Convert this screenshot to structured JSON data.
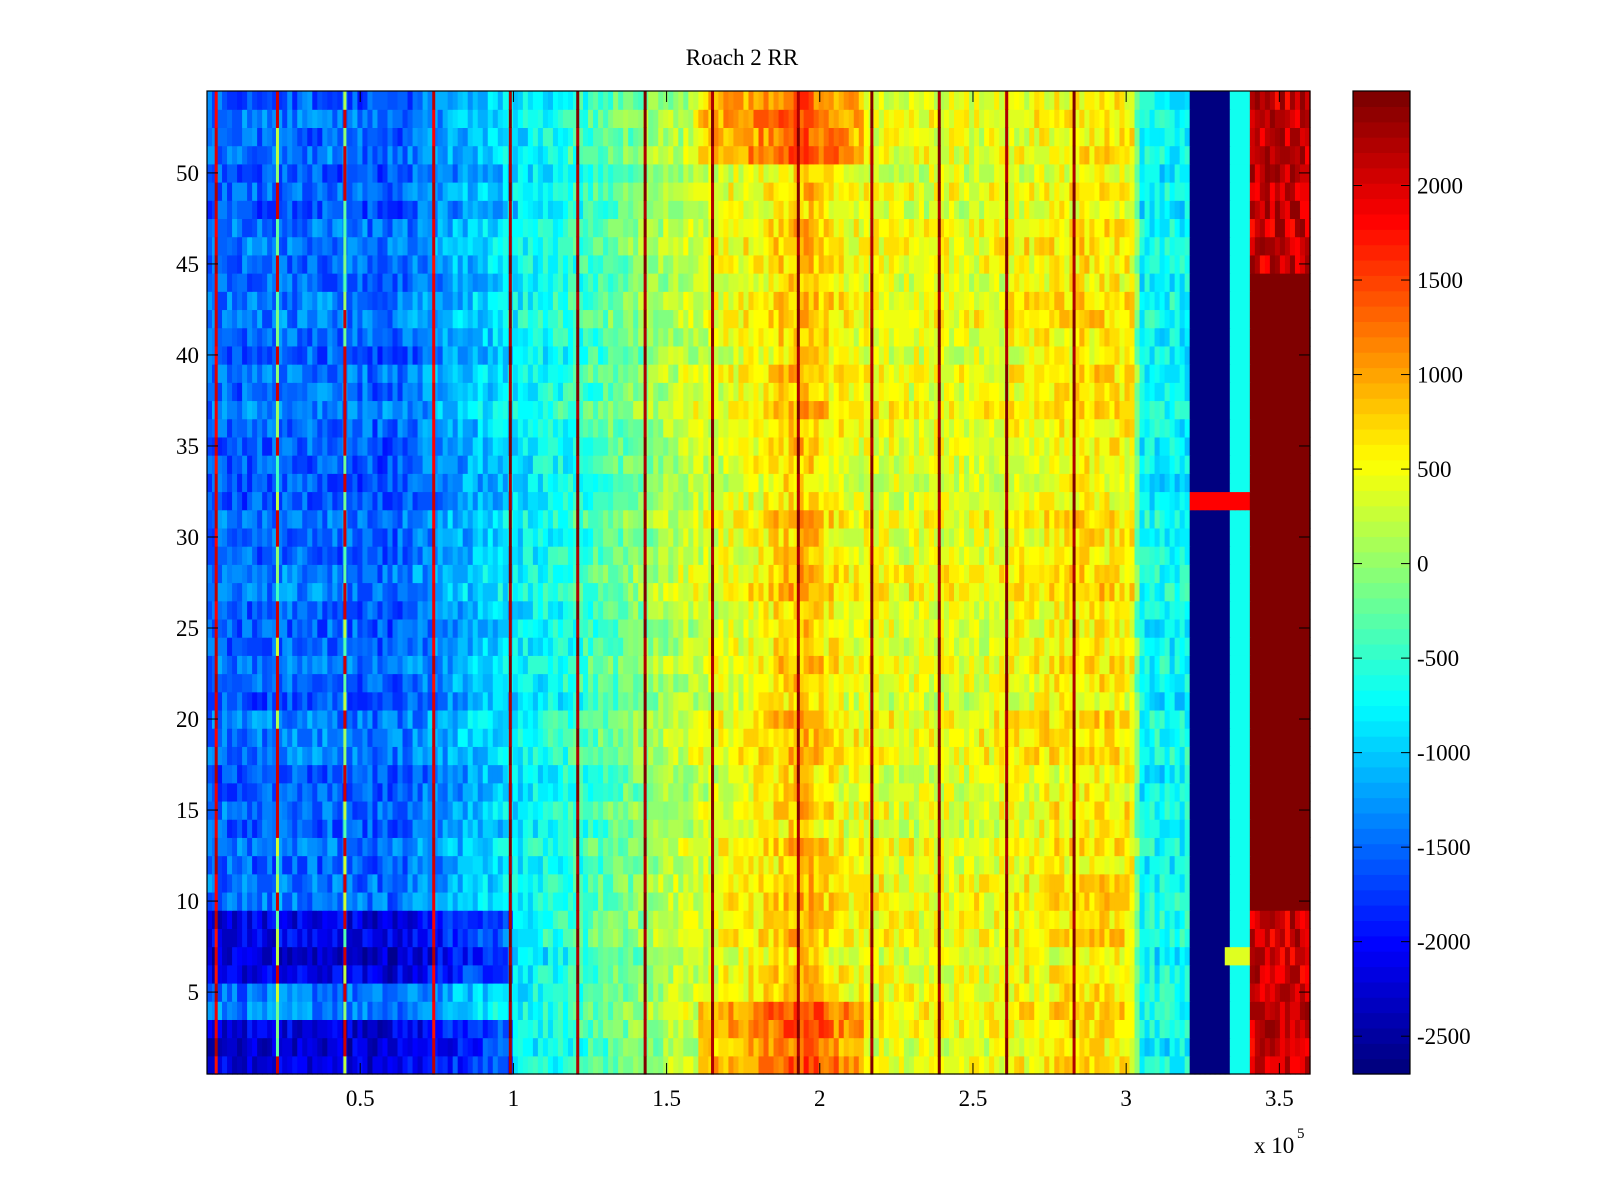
{
  "chart_data": {
    "type": "heatmap",
    "title": "Roach 2 RR",
    "xlabel": "",
    "ylabel": "",
    "x_range": [
      0,
      360000
    ],
    "y_range": [
      0.5,
      54.5
    ],
    "x_exponent_label": "x 10",
    "x_exponent_power": "5",
    "x_ticks": [
      {
        "value": 0.5,
        "label": "0.5"
      },
      {
        "value": 1,
        "label": "1"
      },
      {
        "value": 1.5,
        "label": "1.5"
      },
      {
        "value": 2,
        "label": "2"
      },
      {
        "value": 2.5,
        "label": "2.5"
      },
      {
        "value": 3,
        "label": "3"
      },
      {
        "value": 3.5,
        "label": "3.5"
      }
    ],
    "y_ticks": [
      {
        "value": 5,
        "label": "5"
      },
      {
        "value": 10,
        "label": "10"
      },
      {
        "value": 15,
        "label": "15"
      },
      {
        "value": 20,
        "label": "20"
      },
      {
        "value": 25,
        "label": "25"
      },
      {
        "value": 30,
        "label": "30"
      },
      {
        "value": 35,
        "label": "35"
      },
      {
        "value": 40,
        "label": "40"
      },
      {
        "value": 45,
        "label": "45"
      },
      {
        "value": 50,
        "label": "50"
      }
    ],
    "colorbar": {
      "colormap": "jet",
      "range": [
        -2700,
        2500
      ],
      "ticks": [
        {
          "value": 2000,
          "label": "2000"
        },
        {
          "value": 1500,
          "label": "1500"
        },
        {
          "value": 1000,
          "label": "1000"
        },
        {
          "value": 500,
          "label": "500"
        },
        {
          "value": 0,
          "label": "0"
        },
        {
          "value": -500,
          "label": "-500"
        },
        {
          "value": -1000,
          "label": "-1000"
        },
        {
          "value": -1500,
          "label": "-1500"
        },
        {
          "value": -2000,
          "label": "-2000"
        },
        {
          "value": -2500,
          "label": "-2500"
        }
      ]
    },
    "rows": 54,
    "column_profile": [
      {
        "x": 0,
        "value": -1500
      },
      {
        "x": 40000,
        "value": -1450
      },
      {
        "x": 60000,
        "value": -1550
      },
      {
        "x": 90000,
        "value": -1000
      },
      {
        "x": 120000,
        "value": -500
      },
      {
        "x": 150000,
        "value": 150
      },
      {
        "x": 180000,
        "value": 600
      },
      {
        "x": 195000,
        "value": 950
      },
      {
        "x": 210000,
        "value": 500
      },
      {
        "x": 250000,
        "value": 450
      },
      {
        "x": 290000,
        "value": 700
      },
      {
        "x": 303000,
        "value": 600
      },
      {
        "x": 304000,
        "value": -700
      },
      {
        "x": 320000,
        "value": -700
      },
      {
        "x": 321000,
        "value": -2700
      },
      {
        "x": 333000,
        "value": -2700
      },
      {
        "x": 334000,
        "value": -600
      },
      {
        "x": 340000,
        "value": -600
      },
      {
        "x": 341000,
        "value": 2500
      },
      {
        "x": 360000,
        "value": 2500
      }
    ],
    "hot_rows": [
      1,
      2,
      3,
      4,
      51,
      52,
      53,
      54
    ],
    "cold_rows": [
      1,
      2,
      3,
      6,
      7,
      8,
      9
    ],
    "lines": [
      {
        "x": 3000,
        "kind": "hot"
      },
      {
        "x": 23000,
        "kind": "mixed"
      },
      {
        "x": 45000,
        "kind": "mixed"
      },
      {
        "x": 74000,
        "kind": "hot"
      },
      {
        "x": 99000,
        "kind": "dark"
      },
      {
        "x": 121000,
        "kind": "dark"
      },
      {
        "x": 143000,
        "kind": "dark"
      },
      {
        "x": 165000,
        "kind": "dark"
      },
      {
        "x": 193000,
        "kind": "dark"
      },
      {
        "x": 217000,
        "kind": "dark"
      },
      {
        "x": 239000,
        "kind": "dark"
      },
      {
        "x": 261000,
        "kind": "dark"
      },
      {
        "x": 283000,
        "kind": "dark"
      }
    ],
    "special_cells": [
      {
        "row": 32,
        "x_start": 321000,
        "x_end": 340000,
        "value": 1900
      },
      {
        "row": 7,
        "x_start": 333000,
        "x_end": 340000,
        "value": 400
      }
    ]
  }
}
